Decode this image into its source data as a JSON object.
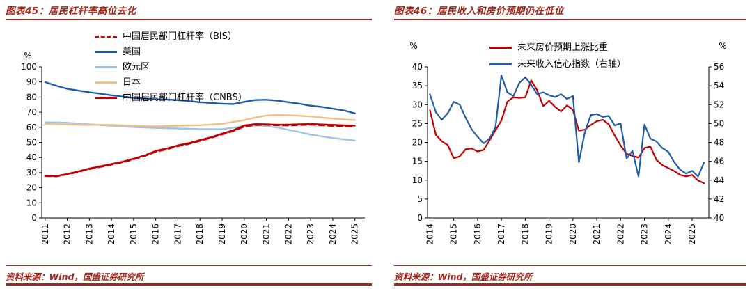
{
  "accent": {
    "header_red": "#A0281C",
    "chart_red": "#C00000",
    "chart_blue": "#1F5CA9",
    "chart_lightblue": "#9DC3E6",
    "chart_tan": "#F3C083"
  },
  "chart_data": [
    {
      "type": "line",
      "title": "图表45：居民杠杆率高位去化",
      "source": "资料来源：Wind，国盛证券研究所",
      "x": {
        "min": 2010.85,
        "max": 2025.45,
        "ticks": [
          2011,
          2012,
          2013,
          2014,
          2015,
          2016,
          2017,
          2018,
          2019,
          2020,
          2021,
          2022,
          2023,
          2024,
          2025
        ]
      },
      "y": {
        "min": 0,
        "max": 100,
        "ticks": [
          0,
          10,
          20,
          30,
          40,
          50,
          60,
          70,
          80,
          90,
          100
        ],
        "unit": "%"
      },
      "legend_position": "upper-left-vertical",
      "grid": false,
      "draw_order": [
        1,
        2,
        3,
        4,
        0
      ],
      "series": [
        {
          "id": "china-household-leverage-bis",
          "name": "中国居民部门杠杆率（BIS）",
          "color": "#C00000",
          "dash": "8 5",
          "width": 2.4,
          "axis": "left",
          "points": [
            [
              2011,
              27.7
            ],
            [
              2011.5,
              27.5
            ],
            [
              2012,
              28.8
            ],
            [
              2012.5,
              30.5
            ],
            [
              2013,
              32.3
            ],
            [
              2013.5,
              33.8
            ],
            [
              2014,
              35.3
            ],
            [
              2014.5,
              36.8
            ],
            [
              2015,
              38.8
            ],
            [
              2015.5,
              41.0
            ],
            [
              2016,
              43.8
            ],
            [
              2016.5,
              45.5
            ],
            [
              2017,
              47.5
            ],
            [
              2017.5,
              49.0
            ],
            [
              2018,
              51.0
            ],
            [
              2018.5,
              53.0
            ],
            [
              2019,
              55.3
            ],
            [
              2019.5,
              57.5
            ],
            [
              2020,
              60.5
            ],
            [
              2020.5,
              61.5
            ],
            [
              2021,
              61.7
            ],
            [
              2021.5,
              61.3
            ],
            [
              2022,
              61.2
            ],
            [
              2022.5,
              61.5
            ],
            [
              2023,
              61.7
            ],
            [
              2023.5,
              61.3
            ],
            [
              2024,
              60.9
            ],
            [
              2024.5,
              60.7
            ],
            [
              2025,
              60.5
            ]
          ]
        },
        {
          "id": "united-states",
          "name": "美国",
          "color": "#1F5CA9",
          "width": 2.4,
          "axis": "left",
          "points": [
            [
              2011,
              89.9
            ],
            [
              2011.5,
              87.5
            ],
            [
              2012,
              85.5
            ],
            [
              2012.5,
              84.3
            ],
            [
              2013,
              83.2
            ],
            [
              2013.5,
              82.2
            ],
            [
              2014,
              81.2
            ],
            [
              2014.5,
              80.3
            ],
            [
              2015,
              79.5
            ],
            [
              2015.5,
              79.0
            ],
            [
              2016,
              78.6
            ],
            [
              2016.5,
              78.3
            ],
            [
              2017,
              78.0
            ],
            [
              2017.5,
              77.3
            ],
            [
              2018,
              76.6
            ],
            [
              2018.5,
              76.1
            ],
            [
              2019,
              75.6
            ],
            [
              2019.5,
              75.4
            ],
            [
              2020,
              76.8
            ],
            [
              2020.5,
              78.0
            ],
            [
              2021,
              78.2
            ],
            [
              2021.5,
              77.6
            ],
            [
              2022,
              76.6
            ],
            [
              2022.5,
              75.6
            ],
            [
              2023,
              74.3
            ],
            [
              2023.5,
              73.5
            ],
            [
              2024,
              72.3
            ],
            [
              2024.5,
              71.2
            ],
            [
              2025,
              69.2
            ]
          ]
        },
        {
          "id": "euro-area",
          "name": "欧元区",
          "color": "#9DC3E6",
          "width": 2.4,
          "axis": "left",
          "points": [
            [
              2011,
              63.3
            ],
            [
              2012,
              63.0
            ],
            [
              2013,
              62.0
            ],
            [
              2014,
              61.0
            ],
            [
              2015,
              60.2
            ],
            [
              2016,
              59.6
            ],
            [
              2017,
              59.2
            ],
            [
              2018,
              58.8
            ],
            [
              2019,
              58.7
            ],
            [
              2020,
              60.8
            ],
            [
              2020.5,
              61.2
            ],
            [
              2021,
              60.8
            ],
            [
              2021.5,
              59.8
            ],
            [
              2022,
              58.3
            ],
            [
              2022.5,
              56.8
            ],
            [
              2023,
              55.2
            ],
            [
              2023.5,
              54.0
            ],
            [
              2024,
              52.9
            ],
            [
              2024.5,
              52.0
            ],
            [
              2025,
              51.2
            ]
          ]
        },
        {
          "id": "japan",
          "name": "日本",
          "color": "#F3C083",
          "width": 2.4,
          "axis": "left",
          "points": [
            [
              2011,
              62.2
            ],
            [
              2012,
              61.8
            ],
            [
              2013,
              61.6
            ],
            [
              2014,
              61.5
            ],
            [
              2015,
              61.0
            ],
            [
              2016,
              60.6
            ],
            [
              2017,
              61.0
            ],
            [
              2018,
              61.4
            ],
            [
              2019,
              62.3
            ],
            [
              2020,
              64.8
            ],
            [
              2020.5,
              66.5
            ],
            [
              2021,
              67.8
            ],
            [
              2021.5,
              68.2
            ],
            [
              2022,
              68.0
            ],
            [
              2022.5,
              67.6
            ],
            [
              2023,
              67.2
            ],
            [
              2023.5,
              66.5
            ],
            [
              2024,
              65.8
            ],
            [
              2024.5,
              65.2
            ],
            [
              2025,
              64.8
            ]
          ]
        },
        {
          "id": "china-household-leverage-cnbs",
          "name": "中国居民部门杠杆率（CNBS）",
          "color": "#C00000",
          "width": 2.4,
          "axis": "left",
          "points": [
            [
              2011,
              27.9
            ],
            [
              2011.5,
              27.7
            ],
            [
              2012,
              29.1
            ],
            [
              2012.5,
              30.8
            ],
            [
              2013,
              32.7
            ],
            [
              2013.5,
              34.2
            ],
            [
              2014,
              35.7
            ],
            [
              2014.5,
              37.2
            ],
            [
              2015,
              39.2
            ],
            [
              2015.5,
              41.4
            ],
            [
              2016,
              44.4
            ],
            [
              2016.5,
              46.0
            ],
            [
              2017,
              48.0
            ],
            [
              2017.5,
              49.5
            ],
            [
              2018,
              51.5
            ],
            [
              2018.5,
              53.4
            ],
            [
              2019,
              55.8
            ],
            [
              2019.5,
              58.0
            ],
            [
              2020,
              61.2
            ],
            [
              2020.5,
              62.1
            ],
            [
              2021,
              62.0
            ],
            [
              2021.5,
              61.7
            ],
            [
              2022,
              61.8
            ],
            [
              2022.5,
              62.0
            ],
            [
              2023,
              62.2
            ],
            [
              2023.5,
              61.9
            ],
            [
              2024,
              61.6
            ],
            [
              2024.5,
              61.3
            ],
            [
              2025,
              61.1
            ]
          ]
        }
      ]
    },
    {
      "type": "line",
      "title": "图表46：居民收入和房价预期仍在低位",
      "source": "资料来源：Wind，国盛证券研究所",
      "x": {
        "min": 2013.9,
        "max": 2025.7,
        "ticks": [
          2014,
          2015,
          2016,
          2017,
          2018,
          2019,
          2020,
          2021,
          2022,
          2023,
          2024,
          2025
        ]
      },
      "y": {
        "min": 0,
        "max": 40,
        "ticks": [
          0,
          5,
          10,
          15,
          20,
          25,
          30,
          35,
          40
        ],
        "unit": "%"
      },
      "y2": {
        "min": 40,
        "max": 56,
        "ticks": [
          40,
          42,
          44,
          46,
          48,
          50,
          52,
          54,
          56
        ],
        "unit": "%"
      },
      "legend_position": "top-center",
      "grid": false,
      "series": [
        {
          "id": "future-house-price-rise-expectation-share",
          "name": "未来房价预期上涨比重",
          "color": "#C00000",
          "width": 2.2,
          "axis": "left",
          "points": [
            [
              2014,
              28.5
            ],
            [
              2014.25,
              22.0
            ],
            [
              2014.5,
              20.3
            ],
            [
              2014.75,
              19.3
            ],
            [
              2015,
              15.8
            ],
            [
              2015.25,
              16.3
            ],
            [
              2015.5,
              18.2
            ],
            [
              2015.75,
              18.4
            ],
            [
              2016,
              17.6
            ],
            [
              2016.25,
              18.0
            ],
            [
              2016.5,
              20.5
            ],
            [
              2016.75,
              23.2
            ],
            [
              2017,
              25.8
            ],
            [
              2017.25,
              30.8
            ],
            [
              2017.5,
              31.9
            ],
            [
              2017.75,
              31.8
            ],
            [
              2018,
              31.9
            ],
            [
              2018.25,
              36.4
            ],
            [
              2018.5,
              33.8
            ],
            [
              2018.75,
              29.6
            ],
            [
              2019,
              31.0
            ],
            [
              2019.25,
              29.4
            ],
            [
              2019.5,
              28.2
            ],
            [
              2019.75,
              29.8
            ],
            [
              2020,
              28.6
            ],
            [
              2020.25,
              23.1
            ],
            [
              2020.5,
              23.4
            ],
            [
              2020.75,
              24.6
            ],
            [
              2021,
              25.6
            ],
            [
              2021.25,
              26.0
            ],
            [
              2021.5,
              24.8
            ],
            [
              2021.75,
              21.8
            ],
            [
              2022,
              19.2
            ],
            [
              2022.25,
              17.0
            ],
            [
              2022.5,
              16.4
            ],
            [
              2022.75,
              16.0
            ],
            [
              2023,
              18.5
            ],
            [
              2023.25,
              18.9
            ],
            [
              2023.5,
              15.4
            ],
            [
              2023.75,
              14.0
            ],
            [
              2024,
              13.2
            ],
            [
              2024.25,
              12.4
            ],
            [
              2024.5,
              11.4
            ],
            [
              2024.75,
              11.0
            ],
            [
              2025,
              11.4
            ],
            [
              2025.25,
              9.9
            ],
            [
              2025.5,
              9.2
            ]
          ]
        },
        {
          "id": "future-income-confidence-index",
          "name": "未来收入信心指数（右轴）",
          "color": "#1F5CA9",
          "width": 2.2,
          "axis": "right",
          "points": [
            [
              2014,
              53.1
            ],
            [
              2014.25,
              51.2
            ],
            [
              2014.5,
              50.4
            ],
            [
              2014.75,
              51.1
            ],
            [
              2015,
              52.3
            ],
            [
              2015.25,
              52.0
            ],
            [
              2015.5,
              50.6
            ],
            [
              2015.75,
              49.4
            ],
            [
              2016,
              48.6
            ],
            [
              2016.25,
              47.9
            ],
            [
              2016.5,
              48.4
            ],
            [
              2016.75,
              49.6
            ],
            [
              2017,
              55.1
            ],
            [
              2017.25,
              53.3
            ],
            [
              2017.5,
              52.9
            ],
            [
              2017.75,
              54.3
            ],
            [
              2018,
              54.9
            ],
            [
              2018.25,
              54.1
            ],
            [
              2018.5,
              53.1
            ],
            [
              2018.75,
              53.3
            ],
            [
              2019,
              53.0
            ],
            [
              2019.25,
              52.8
            ],
            [
              2019.5,
              53.1
            ],
            [
              2019.75,
              52.6
            ],
            [
              2020,
              52.9
            ],
            [
              2020.25,
              45.9
            ],
            [
              2020.5,
              49.1
            ],
            [
              2020.75,
              50.9
            ],
            [
              2021,
              51.0
            ],
            [
              2021.25,
              50.7
            ],
            [
              2021.5,
              50.8
            ],
            [
              2021.75,
              49.8
            ],
            [
              2022,
              50.0
            ],
            [
              2022.25,
              46.3
            ],
            [
              2022.5,
              47.1
            ],
            [
              2022.75,
              44.4
            ],
            [
              2023,
              49.9
            ],
            [
              2023.25,
              48.4
            ],
            [
              2023.5,
              48.1
            ],
            [
              2023.75,
              47.4
            ],
            [
              2024,
              47.0
            ],
            [
              2024.25,
              45.9
            ],
            [
              2024.5,
              45.1
            ],
            [
              2024.75,
              44.7
            ],
            [
              2025,
              45.0
            ],
            [
              2025.25,
              44.4
            ],
            [
              2025.5,
              45.9
            ]
          ]
        }
      ]
    }
  ]
}
